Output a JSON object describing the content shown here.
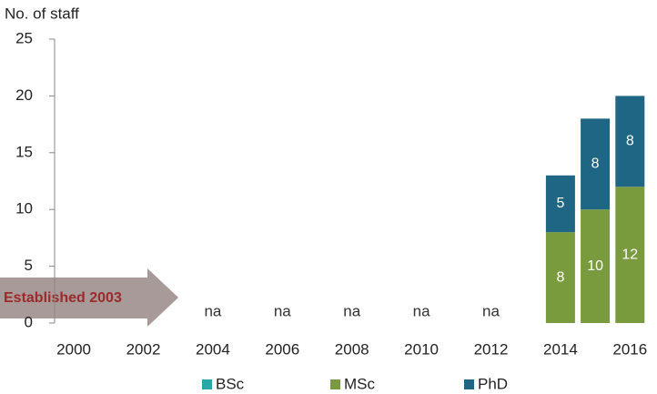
{
  "chart_data": {
    "type": "stacked_bar",
    "y_label": "No. of staff",
    "categories": [
      "2000",
      null,
      "2002",
      null,
      "2004",
      null,
      "2006",
      null,
      "2008",
      null,
      "2010",
      null,
      "2012",
      null,
      "2014",
      null,
      "2016"
    ],
    "series": [
      {
        "name": "BSc",
        "color": "#2aa8a8",
        "values": [
          null,
          null,
          null,
          null,
          null,
          null,
          null,
          null,
          null,
          null,
          null,
          null,
          null,
          null,
          0,
          0,
          0
        ]
      },
      {
        "name": "MSc",
        "color": "#7a9a3e",
        "values": [
          null,
          null,
          null,
          null,
          null,
          null,
          null,
          null,
          null,
          null,
          null,
          null,
          null,
          null,
          8,
          10,
          12
        ],
        "value_labels": [
          null,
          null,
          null,
          null,
          "na",
          null,
          "na",
          null,
          "na",
          null,
          "na",
          null,
          "na",
          null,
          "8",
          "10",
          "12"
        ]
      },
      {
        "name": "PhD",
        "color": "#1f6584",
        "values": [
          null,
          null,
          null,
          null,
          null,
          null,
          null,
          null,
          null,
          null,
          null,
          null,
          null,
          null,
          5,
          8,
          8
        ],
        "value_labels": [
          null,
          null,
          null,
          null,
          null,
          null,
          null,
          null,
          null,
          null,
          null,
          null,
          null,
          null,
          "5",
          "8",
          "8"
        ]
      }
    ],
    "annotation": "Established 2003",
    "ylim": [
      0,
      25
    ],
    "yticks": [
      0,
      5,
      10,
      15,
      20,
      25
    ],
    "grid": false
  }
}
